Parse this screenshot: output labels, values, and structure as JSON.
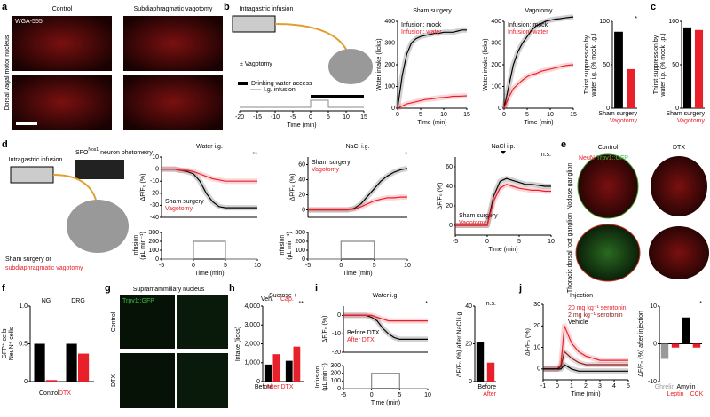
{
  "panel_letters": [
    "a",
    "b",
    "c",
    "d",
    "e",
    "f",
    "g",
    "h",
    "i",
    "j"
  ],
  "panel_a": {
    "columns": [
      "Control",
      "Subdiaphragmatic vagotomy"
    ],
    "stain": "WGA-555",
    "row_label": "Dorsal vagal motor nucleus"
  },
  "panel_b_schematic": {
    "infusion": "Intragastric infusion",
    "vagotomy": "± Vagotomy",
    "legend": [
      "Drinking water access",
      "I.g. infusion"
    ],
    "xlabel": "Time (min)",
    "xlim": [
      -20,
      15
    ],
    "xticks": [
      -20,
      -15,
      -10,
      -5,
      0,
      5,
      10,
      15
    ]
  },
  "panel_d_schematic": {
    "infusion": "Intragastric infusion",
    "photometry": "SFO",
    "photometry_sup": "Nos1",
    "photometry_rest": "neuron photometry",
    "condition": "Sham surgery or",
    "condition_red": "subdiaphragmatic vagotomy"
  },
  "panel_e": {
    "columns": [
      "Control",
      "DTX"
    ],
    "stain": [
      "NeuN",
      "Trpv1::GFP"
    ],
    "rows": [
      "Nodose ganglion",
      "Thoracic dorsal root ganglion"
    ]
  },
  "panel_g": {
    "title": "Supramammillary nucleus",
    "stain": "Trpv1::GFP",
    "rows": [
      "Control",
      "DTX"
    ]
  },
  "panel_j_header": "Injection",
  "chart_data": [
    {
      "type": "line",
      "title": "Sham surgery",
      "ylabel": "Water intake (licks)",
      "xlabel": "Time (min)",
      "xlim": [
        0,
        15
      ],
      "xticks": [
        0,
        5,
        10,
        15
      ],
      "ylim": [
        0,
        400
      ],
      "yticks": [
        0,
        100,
        200,
        300,
        400
      ],
      "x": [
        0,
        1,
        2,
        3,
        4,
        5,
        6,
        7,
        8,
        9,
        10,
        11,
        12,
        13,
        14,
        15
      ],
      "series": [
        {
          "name": "Infusion: mock",
          "color": "#000000",
          "values": [
            0,
            150,
            250,
            300,
            320,
            330,
            335,
            340,
            345,
            345,
            350,
            350,
            350,
            355,
            360,
            360
          ]
        },
        {
          "name": "Infusion: water",
          "color": "#e8202a",
          "values": [
            0,
            10,
            20,
            25,
            30,
            35,
            40,
            42,
            45,
            48,
            50,
            52,
            55,
            55,
            56,
            57
          ]
        }
      ]
    },
    {
      "type": "line",
      "title": "Vagotomy",
      "ylabel": "Water intake (licks)",
      "xlabel": "Time (min)",
      "xlim": [
        0,
        15
      ],
      "xticks": [
        0,
        5,
        10,
        15
      ],
      "ylim": [
        0,
        400
      ],
      "yticks": [
        0,
        100,
        200,
        300,
        400
      ],
      "x": [
        0,
        1,
        2,
        3,
        4,
        5,
        6,
        7,
        8,
        9,
        10,
        11,
        12,
        13,
        14,
        15
      ],
      "series": [
        {
          "name": "Infusion: mock",
          "color": "#000000",
          "values": [
            0,
            100,
            200,
            260,
            300,
            330,
            360,
            380,
            390,
            400,
            405,
            410,
            412,
            415,
            418,
            420
          ]
        },
        {
          "name": "Infusion: water",
          "color": "#e8202a",
          "values": [
            0,
            50,
            90,
            110,
            130,
            145,
            155,
            160,
            170,
            175,
            180,
            185,
            190,
            195,
            198,
            200
          ]
        }
      ]
    },
    {
      "type": "bar",
      "ylabel": [
        "Thirst suppression by",
        "water i.g. (% mock i.g.)"
      ],
      "categories": [
        "Sham surgery",
        "Vagotomy"
      ],
      "values": [
        88,
        45
      ],
      "colors": [
        "#000000",
        "#e8202a"
      ],
      "ylim": [
        0,
        100
      ],
      "yticks": [
        0,
        50,
        100
      ],
      "annotations": [
        "*"
      ]
    },
    {
      "type": "bar",
      "ylabel": [
        "Thirst suppression by",
        "water i.p. (% mock i.p.)"
      ],
      "categories": [
        "Sham surgery",
        "Vagotomy"
      ],
      "values": [
        93,
        90
      ],
      "colors": [
        "#000000",
        "#e8202a"
      ],
      "ylim": [
        0,
        100
      ],
      "yticks": [
        0,
        50,
        100
      ]
    },
    {
      "type": "line",
      "title": "Water i.g.",
      "ylabel": "ΔF/F₀ (%)",
      "xlim": [
        -5,
        10
      ],
      "xticks": [
        -5,
        0,
        5,
        10
      ],
      "ylim": [
        -40,
        10
      ],
      "yticks": [
        10,
        0,
        -10,
        -20,
        -30,
        -40
      ],
      "x": [
        -5,
        -4,
        -3,
        -2,
        -1,
        0,
        1,
        2,
        3,
        4,
        5,
        6,
        7,
        8,
        9,
        10
      ],
      "annotations": [
        "**"
      ],
      "series": [
        {
          "name": "Sham surgery",
          "color": "#000000",
          "values": [
            0,
            0,
            0,
            -1,
            -2,
            -4,
            -10,
            -20,
            -27,
            -31,
            -32,
            -32,
            -32,
            -32,
            -32,
            -32
          ]
        },
        {
          "name": "Vagotomy",
          "color": "#e8202a",
          "values": [
            0,
            0,
            0,
            -1,
            -1,
            -2,
            -4,
            -6,
            -8,
            -9,
            -10,
            -10,
            -10,
            -10,
            -10,
            -10
          ]
        }
      ]
    },
    {
      "type": "line",
      "ylabel": [
        "Infusion",
        "(µL min⁻¹)"
      ],
      "xlabel": "Time (min)",
      "xlim": [
        -5,
        10
      ],
      "xticks": [
        -5,
        0,
        5,
        10
      ],
      "ylim": [
        0,
        300
      ],
      "yticks": [
        0,
        100,
        200,
        300
      ],
      "x": [
        -5,
        0,
        0,
        5,
        5,
        10
      ],
      "series": [
        {
          "color": "#888888",
          "values": [
            0,
            0,
            200,
            200,
            0,
            0
          ]
        }
      ]
    },
    {
      "type": "line",
      "title": "NaCl i.g.",
      "ylabel": "ΔF/F₀ (%)",
      "xlim": [
        -5,
        10
      ],
      "xticks": [
        -5,
        0,
        5,
        10
      ],
      "ylim": [
        -10,
        70
      ],
      "yticks": [
        0,
        20,
        40,
        60
      ],
      "x": [
        -5,
        -4,
        -3,
        -2,
        -1,
        0,
        1,
        2,
        3,
        4,
        5,
        6,
        7,
        8,
        9,
        10
      ],
      "annotations": [
        "*"
      ],
      "series": [
        {
          "name": "Sham surgery",
          "color": "#000000",
          "values": [
            0,
            0,
            0,
            0,
            0,
            0,
            0,
            2,
            8,
            18,
            28,
            38,
            45,
            50,
            53,
            55
          ]
        },
        {
          "name": "Vagotomy",
          "color": "#e8202a",
          "values": [
            0,
            0,
            0,
            0,
            0,
            0,
            0,
            1,
            4,
            8,
            12,
            14,
            16,
            16,
            17,
            17
          ]
        }
      ]
    },
    {
      "type": "line",
      "ylabel": [
        "Infusion",
        "(µL min⁻¹)"
      ],
      "xlabel": "Time (min)",
      "xlim": [
        -5,
        10
      ],
      "xticks": [
        -5,
        0,
        5,
        10
      ],
      "ylim": [
        0,
        300
      ],
      "yticks": [
        0,
        100,
        200,
        300
      ],
      "x": [
        -5,
        0,
        0,
        5,
        5,
        10
      ],
      "series": [
        {
          "color": "#888888",
          "values": [
            0,
            0,
            200,
            200,
            0,
            0
          ]
        }
      ]
    },
    {
      "type": "line",
      "title": "NaCl i.p.",
      "ylabel": "ΔF/F₀ (%)",
      "xlabel": "Time (min)",
      "xlim": [
        -5,
        10
      ],
      "xticks": [
        -5,
        0,
        5,
        10
      ],
      "ylim": [
        -10,
        70
      ],
      "yticks": [
        0,
        20,
        40,
        60
      ],
      "x": [
        -5,
        -4,
        -3,
        -2,
        -1,
        0,
        1,
        2,
        3,
        4,
        5,
        6,
        7,
        8,
        9,
        10
      ],
      "annotations": [
        "n.s."
      ],
      "series": [
        {
          "name": "Sham surgery",
          "color": "#000000",
          "values": [
            0,
            0,
            0,
            0,
            0,
            0,
            30,
            45,
            48,
            46,
            44,
            42,
            42,
            41,
            40,
            40
          ]
        },
        {
          "name": "Vagotomy",
          "color": "#e8202a",
          "values": [
            0,
            0,
            0,
            0,
            0,
            0,
            25,
            38,
            42,
            40,
            38,
            37,
            36,
            36,
            35,
            35
          ]
        }
      ]
    },
    {
      "type": "bar",
      "ylabel": [
        "GFP⁺ cells",
        "NeuN⁺ cells"
      ],
      "categories": [
        "NG",
        "DRG"
      ],
      "ylim": [
        0,
        1
      ],
      "yticks": [
        0,
        0.5,
        {
          "value": 1,
          "label": "1.0"
        }
      ],
      "series": [
        {
          "name": "Control",
          "color": "#000000",
          "values": [
            0.5,
            0.5
          ]
        },
        {
          "name": "DTX",
          "color": "#e8202a",
          "values": [
            0.02,
            0.37
          ]
        }
      ]
    },
    {
      "type": "bar",
      "title": "Sucrose +",
      "ylabel": "Intake (licks)",
      "categories": [
        "Before",
        "After DTX"
      ],
      "category_colors": [
        "#000000",
        "#e8202a"
      ],
      "ylim": [
        0,
        4000
      ],
      "yticks": [
        0,
        {
          "value": 1000,
          "label": "1,000"
        },
        {
          "value": 2000,
          "label": "2,000"
        },
        {
          "value": 3000,
          "label": "3,000"
        },
        {
          "value": 4000,
          "label": "4,000"
        }
      ],
      "annotations": [
        "**"
      ],
      "series": [
        {
          "name": "Veh.",
          "color": "#000000",
          "values": [
            900,
            1100
          ]
        },
        {
          "name": "Cap.",
          "color": "#e8202a",
          "values": [
            1450,
            1850
          ]
        }
      ]
    },
    {
      "type": "line",
      "title": "Water i.g.",
      "ylabel": "ΔF/F₀ (%)",
      "xlim": [
        -5,
        10
      ],
      "xticks": [
        -5,
        0,
        5,
        10
      ],
      "ylim": [
        -20,
        5
      ],
      "yticks": [
        0,
        -10,
        -20
      ],
      "x": [
        -5,
        -4,
        -3,
        -2,
        -1,
        0,
        1,
        2,
        3,
        4,
        5,
        6,
        7,
        8,
        9,
        10
      ],
      "annotations": [
        "*"
      ],
      "series": [
        {
          "name": "Before DTX",
          "color": "#000000",
          "values": [
            0,
            0,
            0,
            0,
            0,
            -1,
            -3,
            -7,
            -10,
            -12,
            -13,
            -13,
            -13,
            -13,
            -13,
            -13
          ]
        },
        {
          "name": "After DTX",
          "color": "#e8202a",
          "values": [
            0,
            0,
            0,
            0,
            0,
            0,
            -1,
            -2,
            -3,
            -3,
            -3,
            -3,
            -3,
            -3,
            -3,
            -3
          ]
        }
      ]
    },
    {
      "type": "line",
      "ylabel": [
        "Infusion",
        "(µL min⁻¹)"
      ],
      "xlabel": "Time (min)",
      "xlim": [
        -5,
        10
      ],
      "xticks": [
        -5,
        0,
        5,
        10
      ],
      "ylim": [
        0,
        300
      ],
      "yticks": [
        0,
        100,
        200,
        300
      ],
      "x": [
        -5,
        0,
        0,
        5,
        5,
        10
      ],
      "series": [
        {
          "color": "#888888",
          "values": [
            0,
            0,
            200,
            200,
            0,
            0
          ]
        }
      ]
    },
    {
      "type": "bar",
      "ylabel": [
        "ΔF/F₀ (%) after NaCl i.g."
      ],
      "categories": [
        "Before",
        "After"
      ],
      "values": [
        21,
        10
      ],
      "colors": [
        "#000000",
        "#e8202a"
      ],
      "ylim": [
        0,
        40
      ],
      "yticks": [
        0,
        20,
        40
      ],
      "annotations": [
        "n.s."
      ]
    },
    {
      "type": "line",
      "ylabel": "ΔF/F₀ (%)",
      "xlabel": "Time (min)",
      "xlim": [
        -1,
        5
      ],
      "xticks": [
        -1,
        0,
        1,
        2,
        3,
        4,
        5
      ],
      "ylim": [
        -5,
        30
      ],
      "yticks": [
        0,
        10,
        20,
        30
      ],
      "x": [
        -1,
        -0.5,
        0,
        0.25,
        0.5,
        1,
        1.5,
        2,
        2.5,
        3,
        4,
        4.5,
        5
      ],
      "series": [
        {
          "name": "20 mg kg⁻¹ serotonin",
          "color": "#e8202a",
          "values": [
            0,
            0,
            0,
            2,
            20,
            12,
            8,
            6,
            5,
            4,
            4,
            4,
            4
          ]
        },
        {
          "name": "2 mg kg⁻¹ serotonin",
          "color": "#8b1a1a",
          "values": [
            0,
            0,
            0,
            1,
            8,
            5,
            3,
            2,
            2,
            2,
            2,
            2,
            2
          ]
        },
        {
          "name": "Vehicle",
          "color": "#000000",
          "values": [
            0,
            0,
            0,
            0,
            2,
            0,
            -1,
            -1,
            -1,
            -1,
            -1,
            -1,
            -1
          ]
        }
      ]
    },
    {
      "type": "bar",
      "ylabel": "ΔF/F₀ (%) after injection",
      "categories": [
        "Ghrelin",
        "Leptin",
        "Amylin",
        "CCK"
      ],
      "values": [
        -4,
        -1,
        7,
        -1
      ],
      "colors": [
        "#999999",
        "#e8202a",
        "#000000",
        "#e8202a"
      ],
      "ylim": [
        -10,
        10
      ],
      "yticks": [
        -10,
        0,
        10
      ],
      "annotations": [
        "*"
      ]
    }
  ]
}
